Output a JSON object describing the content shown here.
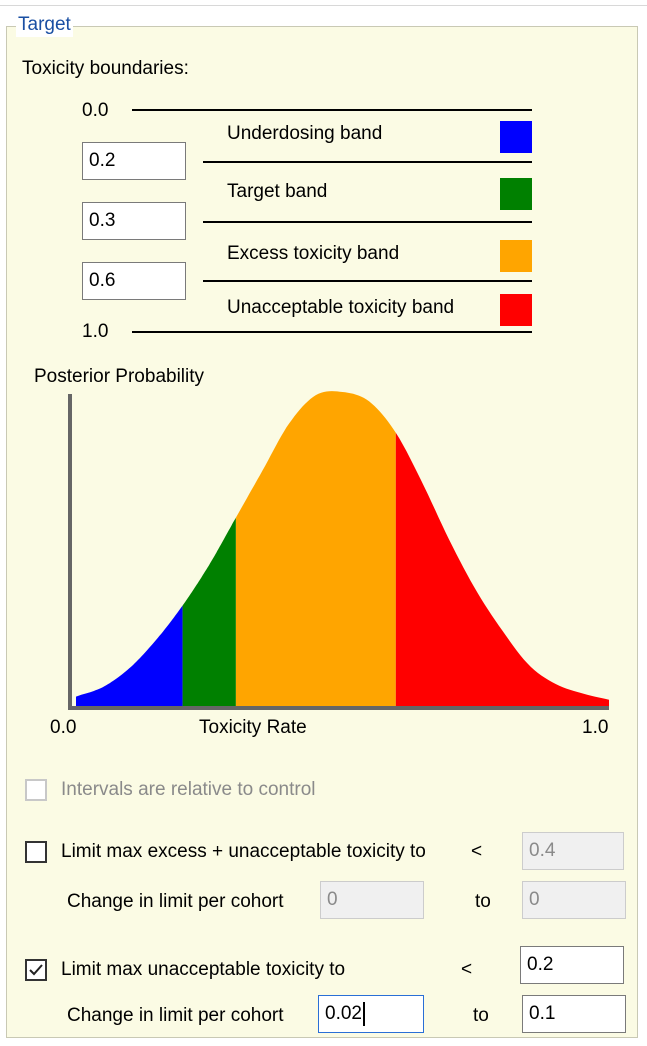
{
  "group": {
    "title": "Target"
  },
  "boundaries": {
    "heading": "Toxicity boundaries:",
    "top_label": "0.0",
    "bottom_label": "1.0",
    "values": [
      "0.2",
      "0.3",
      "0.6"
    ],
    "bands": [
      {
        "label": "Underdosing band",
        "color": "#0000ff"
      },
      {
        "label": "Target band",
        "color": "#008000"
      },
      {
        "label": "Excess toxicity band",
        "color": "#ffa500"
      },
      {
        "label": "Unacceptable toxicity band",
        "color": "#ff0000"
      }
    ]
  },
  "chart_data": {
    "type": "area",
    "title": "Posterior Probability",
    "xlabel": "Toxicity Rate",
    "ylabel": "Posterior Probability",
    "x_tick_labels": [
      "0.0",
      "1.0"
    ],
    "xlim": [
      0.0,
      1.0
    ],
    "y_axis_ticks": "none",
    "x": [
      0.0,
      0.05,
      0.1,
      0.15,
      0.2,
      0.25,
      0.3,
      0.35,
      0.4,
      0.45,
      0.5,
      0.55,
      0.6,
      0.65,
      0.7,
      0.75,
      0.8,
      0.85,
      0.9,
      0.95,
      1.0
    ],
    "density": [
      0.03,
      0.06,
      0.12,
      0.21,
      0.32,
      0.45,
      0.6,
      0.75,
      0.9,
      0.99,
      1.0,
      0.97,
      0.87,
      0.71,
      0.53,
      0.37,
      0.24,
      0.13,
      0.07,
      0.04,
      0.02
    ],
    "fill_bands": [
      {
        "from": 0.0,
        "to": 0.2,
        "color": "#0000ff"
      },
      {
        "from": 0.2,
        "to": 0.3,
        "color": "#008000"
      },
      {
        "from": 0.3,
        "to": 0.6,
        "color": "#ffa500"
      },
      {
        "from": 0.6,
        "to": 1.0,
        "color": "#ff0000"
      }
    ],
    "grid": false,
    "legend": "none"
  },
  "relative": {
    "label": "Intervals are relative to control",
    "checked": false,
    "enabled": false
  },
  "limit_excess": {
    "label": "Limit max excess + unacceptable toxicity to",
    "lt": "<",
    "checked": false,
    "value": "0.4",
    "change_label": "Change in limit per cohort",
    "change_value": "0",
    "to_label": "to",
    "to_value": "0"
  },
  "limit_unacceptable": {
    "label": "Limit max unacceptable toxicity to",
    "lt": "<",
    "checked": true,
    "value": "0.2",
    "change_label": "Change in limit per cohort",
    "change_value": "0.02",
    "to_label": "to",
    "to_value": "0.1"
  }
}
